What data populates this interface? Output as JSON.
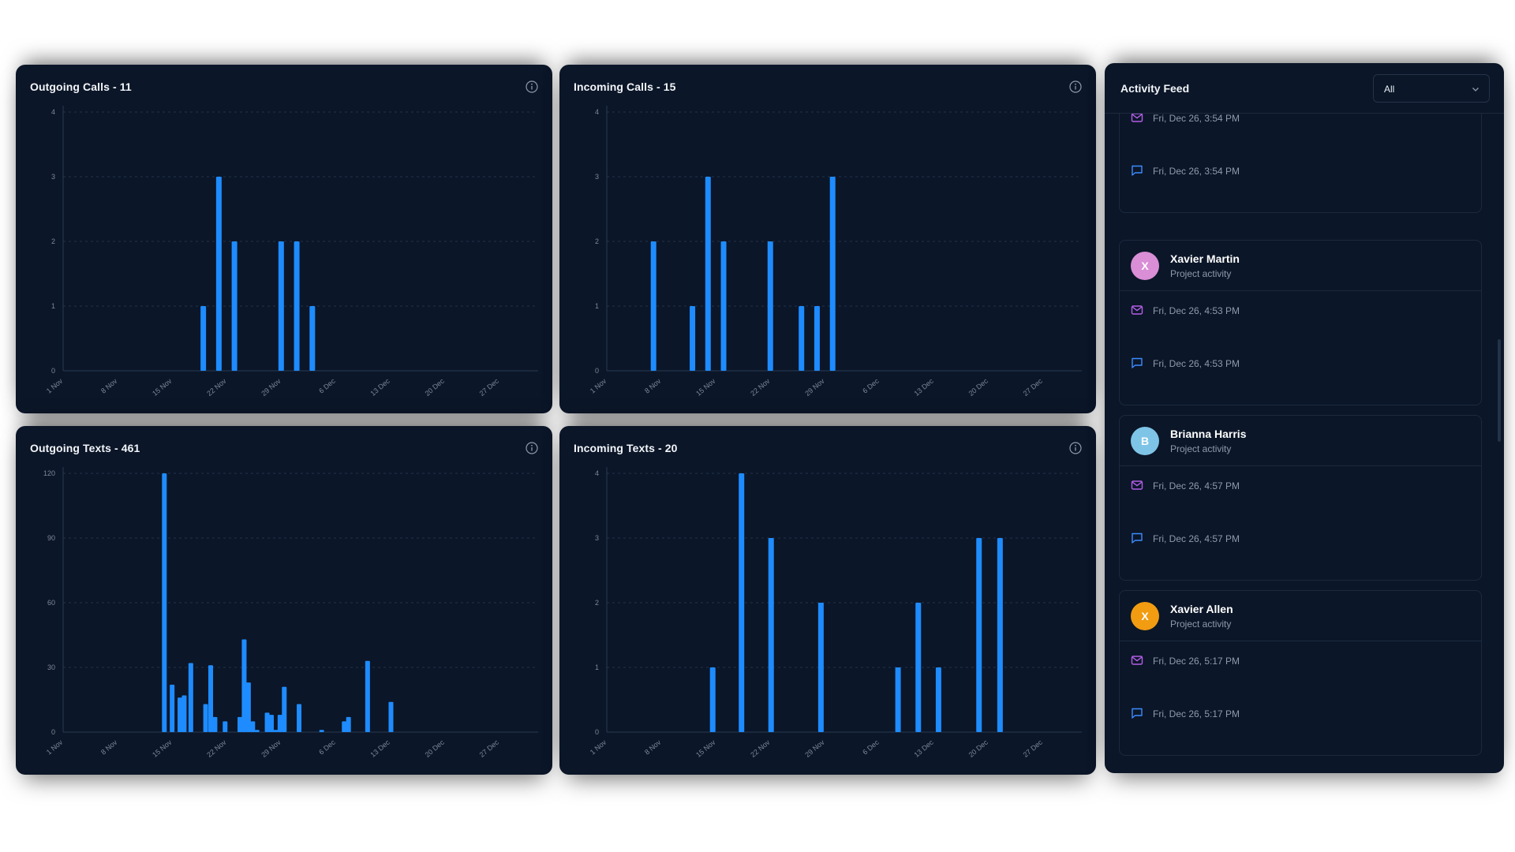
{
  "charts": {
    "outgoing_calls": {
      "title_prefix": "Outgoing Calls - ",
      "count": "11"
    },
    "incoming_calls": {
      "title_prefix": "Incoming Calls - ",
      "count": "15"
    },
    "outgoing_texts": {
      "title_prefix": "Outgoing Texts - ",
      "count": "461"
    },
    "incoming_texts": {
      "title_prefix": "Incoming Texts - ",
      "count": "20"
    }
  },
  "chart_data": [
    {
      "id": "outgoing_calls",
      "type": "bar",
      "title": "Outgoing Calls - 11",
      "x_ticks": [
        "1 Nov",
        "8 Nov",
        "15 Nov",
        "22 Nov",
        "29 Nov",
        "6 Dec",
        "13 Dec",
        "20 Dec",
        "27 Dec"
      ],
      "y_ticks": [
        0,
        1,
        2,
        3,
        4
      ],
      "ylim": [
        0,
        4
      ],
      "xlim_days": [
        0,
        61
      ],
      "points": [
        {
          "date": "Nov 19",
          "day": 18,
          "value": 1
        },
        {
          "date": "Nov 21",
          "day": 20,
          "value": 3
        },
        {
          "date": "Nov 23",
          "day": 22,
          "value": 2
        },
        {
          "date": "Nov 29",
          "day": 28,
          "value": 2
        },
        {
          "date": "Dec 1",
          "day": 30,
          "value": 2
        },
        {
          "date": "Dec 3",
          "day": 32,
          "value": 1
        }
      ]
    },
    {
      "id": "incoming_calls",
      "type": "bar",
      "title": "Incoming Calls - 15",
      "x_ticks": [
        "1 Nov",
        "8 Nov",
        "15 Nov",
        "22 Nov",
        "29 Nov",
        "6 Dec",
        "13 Dec",
        "20 Dec",
        "27 Dec"
      ],
      "y_ticks": [
        0,
        1,
        2,
        3,
        4
      ],
      "ylim": [
        0,
        4
      ],
      "xlim_days": [
        0,
        61
      ],
      "points": [
        {
          "date": "Nov 7",
          "day": 6,
          "value": 2
        },
        {
          "date": "Nov 12",
          "day": 11,
          "value": 1
        },
        {
          "date": "Nov 14",
          "day": 13,
          "value": 3
        },
        {
          "date": "Nov 16",
          "day": 15,
          "value": 2
        },
        {
          "date": "Nov 22",
          "day": 21,
          "value": 2
        },
        {
          "date": "Nov 26",
          "day": 25,
          "value": 1
        },
        {
          "date": "Nov 28",
          "day": 27,
          "value": 1
        },
        {
          "date": "Nov 30",
          "day": 29,
          "value": 3
        }
      ]
    },
    {
      "id": "outgoing_texts",
      "type": "bar",
      "title": "Outgoing Texts - 461",
      "x_ticks": [
        "1 Nov",
        "8 Nov",
        "15 Nov",
        "22 Nov",
        "29 Nov",
        "6 Dec",
        "13 Dec",
        "20 Dec",
        "27 Dec"
      ],
      "y_ticks": [
        0,
        30,
        60,
        90,
        120
      ],
      "ylim": [
        0,
        120
      ],
      "xlim_days": [
        0,
        61
      ],
      "points": [
        {
          "date": "Nov 14",
          "day": 13,
          "value": 120
        },
        {
          "date": "Nov 15",
          "day": 14,
          "value": 22
        },
        {
          "date": "Nov 16",
          "day": 15,
          "value": 16
        },
        {
          "date": "Nov 16",
          "day": 15.55,
          "value": 17
        },
        {
          "date": "Nov 17",
          "day": 16.4,
          "value": 32
        },
        {
          "date": "Nov 19",
          "day": 18.3,
          "value": 13
        },
        {
          "date": "Nov 20",
          "day": 18.95,
          "value": 31
        },
        {
          "date": "Nov 20",
          "day": 19.5,
          "value": 7
        },
        {
          "date": "Nov 22",
          "day": 20.8,
          "value": 5
        },
        {
          "date": "Nov 23",
          "day": 22.7,
          "value": 7
        },
        {
          "date": "Nov 24",
          "day": 23.25,
          "value": 43
        },
        {
          "date": "Nov 24",
          "day": 23.8,
          "value": 23
        },
        {
          "date": "Nov 25",
          "day": 24.35,
          "value": 5
        },
        {
          "date": "Nov 26",
          "day": 24.9,
          "value": 1
        },
        {
          "date": "Nov 27",
          "day": 26.2,
          "value": 9
        },
        {
          "date": "Nov 28",
          "day": 26.75,
          "value": 8
        },
        {
          "date": "Nov 28",
          "day": 27.3,
          "value": 1
        },
        {
          "date": "Nov 29",
          "day": 27.85,
          "value": 8
        },
        {
          "date": "Nov 29",
          "day": 28.4,
          "value": 21
        },
        {
          "date": "Dec 1",
          "day": 30.3,
          "value": 13
        },
        {
          "date": "Dec 4",
          "day": 33.2,
          "value": 1
        },
        {
          "date": "Dec 7",
          "day": 36.1,
          "value": 5
        },
        {
          "date": "Dec 7",
          "day": 36.65,
          "value": 7
        },
        {
          "date": "Dec 10",
          "day": 39.1,
          "value": 33
        },
        {
          "date": "Dec 13",
          "day": 42.1,
          "value": 14
        }
      ]
    },
    {
      "id": "incoming_texts",
      "type": "bar",
      "title": "Incoming Texts - 20",
      "x_ticks": [
        "1 Nov",
        "8 Nov",
        "15 Nov",
        "22 Nov",
        "29 Nov",
        "6 Dec",
        "13 Dec",
        "20 Dec",
        "27 Dec"
      ],
      "y_ticks": [
        0,
        1,
        2,
        3,
        4
      ],
      "ylim": [
        0,
        4
      ],
      "xlim_days": [
        0,
        61
      ],
      "points": [
        {
          "date": "Nov 14",
          "day": 13.6,
          "value": 1
        },
        {
          "date": "Nov 17",
          "day": 17.3,
          "value": 4
        },
        {
          "date": "Nov 21",
          "day": 21.1,
          "value": 3
        },
        {
          "date": "Nov 27",
          "day": 27.5,
          "value": 2
        },
        {
          "date": "Dec 7",
          "day": 37.4,
          "value": 1
        },
        {
          "date": "Dec 10",
          "day": 40.0,
          "value": 2
        },
        {
          "date": "Dec 12",
          "day": 42.6,
          "value": 1
        },
        {
          "date": "Dec 17",
          "day": 47.8,
          "value": 3
        },
        {
          "date": "Dec 20",
          "day": 50.5,
          "value": 3
        }
      ]
    }
  ],
  "feed": {
    "title": "Activity Feed",
    "filter_value": "All",
    "top_items": [
      {
        "icon": "mail-icon",
        "time": "Fri, Dec 26, 3:54 PM"
      },
      {
        "icon": "chat-icon",
        "time": "Fri, Dec 26, 3:54 PM"
      }
    ],
    "groups": [
      {
        "name": "Xavier Martin",
        "subtitle": "Project activity",
        "initial": "X",
        "avatar_color": "#d98ed6",
        "items": [
          {
            "icon": "mail-icon",
            "time": "Fri, Dec 26, 4:53 PM"
          },
          {
            "icon": "chat-icon",
            "time": "Fri, Dec 26, 4:53 PM"
          }
        ]
      },
      {
        "name": "Brianna Harris",
        "subtitle": "Project activity",
        "initial": "B",
        "avatar_color": "#7ec4e6",
        "items": [
          {
            "icon": "mail-icon",
            "time": "Fri, Dec 26, 4:57 PM"
          },
          {
            "icon": "chat-icon",
            "time": "Fri, Dec 26, 4:57 PM"
          }
        ]
      },
      {
        "name": "Xavier Allen",
        "subtitle": "Project activity",
        "initial": "X",
        "avatar_color": "#f29c11",
        "items": [
          {
            "icon": "mail-icon",
            "time": "Fri, Dec 26, 5:17 PM"
          },
          {
            "icon": "chat-icon",
            "time": "Fri, Dec 26, 5:17 PM"
          }
        ]
      }
    ]
  },
  "colors": {
    "card_bg": "#0b1628",
    "bar": "#1e8cff",
    "mail_icon": "#b35ee6",
    "chat_icon": "#3d8bff",
    "text_muted": "#8f9bad"
  }
}
